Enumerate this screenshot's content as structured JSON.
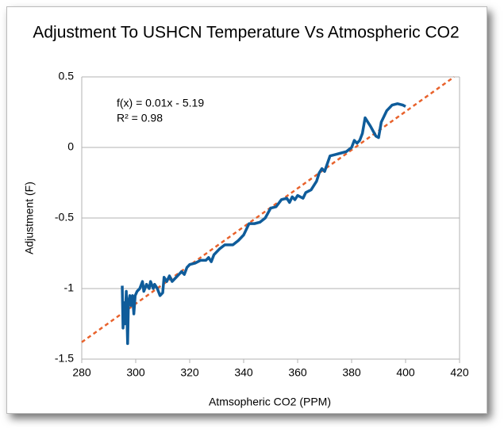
{
  "chart_data": {
    "type": "line",
    "title": "Adjustment To USHCN Temperature Vs Atmospheric CO2",
    "x_label": "Atmsopheric CO2 (PPM)",
    "y_label": "Adjustment (F)",
    "annotations": [
      "f(x) = 0.01x - 5.19",
      "R² = 0.98"
    ],
    "xlim": [
      280,
      420
    ],
    "xticks": [
      280,
      300,
      320,
      340,
      360,
      380,
      400,
      420
    ],
    "ylim": [
      -1.5,
      0.5
    ],
    "yticks": [
      0.5,
      0,
      -0.5,
      -1,
      -1.5
    ],
    "grid": true,
    "series": [
      {
        "color": "#0f5c9a",
        "x": [
          295,
          295.3,
          295.6,
          296,
          296.5,
          297,
          297.3,
          297.8,
          298.3,
          298.8,
          299.3,
          299.8,
          300.5,
          301.5,
          302.5,
          303,
          304,
          305,
          305.5,
          306.5,
          307,
          308,
          309,
          310,
          310.5,
          311.5,
          312.5,
          313.5,
          315,
          316,
          317,
          318,
          319,
          320,
          322,
          324,
          326,
          327,
          328,
          329,
          331,
          333,
          336,
          338,
          340,
          342,
          344,
          346,
          348,
          350,
          352,
          354,
          356,
          357,
          358,
          359,
          360,
          362,
          363,
          365,
          366,
          367,
          368,
          369,
          370,
          372,
          374,
          376,
          378,
          380,
          381,
          382,
          383,
          384,
          385,
          387,
          389,
          390,
          391,
          393,
          395,
          397,
          399,
          400
        ],
        "values": [
          -0.98,
          -1.28,
          -1.1,
          -1.25,
          -1.02,
          -1.39,
          -1.1,
          -1.05,
          -1.12,
          -1.05,
          -1.18,
          -1.05,
          -1.02,
          -1.0,
          -0.95,
          -1.02,
          -0.97,
          -1.0,
          -0.95,
          -1.0,
          -0.97,
          -1.0,
          -1.05,
          -1.03,
          -0.92,
          -0.95,
          -0.91,
          -0.95,
          -0.92,
          -0.9,
          -0.88,
          -0.9,
          -0.85,
          -0.83,
          -0.82,
          -0.8,
          -0.8,
          -0.78,
          -0.81,
          -0.76,
          -0.72,
          -0.69,
          -0.69,
          -0.66,
          -0.62,
          -0.54,
          -0.54,
          -0.53,
          -0.5,
          -0.43,
          -0.42,
          -0.37,
          -0.36,
          -0.39,
          -0.35,
          -0.37,
          -0.34,
          -0.36,
          -0.32,
          -0.3,
          -0.27,
          -0.24,
          -0.18,
          -0.15,
          -0.17,
          -0.06,
          -0.05,
          -0.04,
          -0.03,
          0.0,
          0.05,
          0.03,
          0.05,
          0.1,
          0.21,
          0.15,
          0.08,
          0.07,
          0.18,
          0.26,
          0.3,
          0.31,
          0.3,
          0.29
        ]
      }
    ],
    "trendline": {
      "color": "#e8622c",
      "x": [
        280,
        418
      ],
      "values": [
        -1.38,
        0.5
      ]
    }
  }
}
